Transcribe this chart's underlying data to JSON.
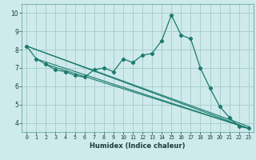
{
  "title": "",
  "xlabel": "Humidex (Indice chaleur)",
  "ylabel": "",
  "background_color": "#ceeaea",
  "grid_color": "#aacfcf",
  "line_color": "#1a7a6e",
  "xlim": [
    -0.5,
    23.5
  ],
  "ylim": [
    3.5,
    10.5
  ],
  "xticks": [
    0,
    1,
    2,
    3,
    4,
    5,
    6,
    7,
    8,
    9,
    10,
    11,
    12,
    13,
    14,
    15,
    16,
    17,
    18,
    19,
    20,
    21,
    22,
    23
  ],
  "yticks": [
    4,
    5,
    6,
    7,
    8,
    9,
    10
  ],
  "main_curve": {
    "x": [
      0,
      1,
      2,
      3,
      4,
      5,
      6,
      7,
      8,
      9,
      10,
      11,
      12,
      13,
      14,
      15,
      16,
      17,
      18,
      19,
      20,
      21,
      22,
      23
    ],
    "y": [
      8.2,
      7.5,
      7.2,
      6.9,
      6.8,
      6.6,
      6.5,
      6.9,
      7.0,
      6.8,
      7.5,
      7.3,
      7.7,
      7.8,
      8.5,
      9.9,
      8.8,
      8.6,
      7.0,
      5.9,
      4.9,
      4.3,
      3.8,
      3.7
    ]
  },
  "straight_lines": [
    {
      "x": [
        0,
        23
      ],
      "y": [
        8.2,
        3.7
      ]
    },
    {
      "x": [
        0,
        23
      ],
      "y": [
        8.2,
        3.8
      ]
    },
    {
      "x": [
        1,
        23
      ],
      "y": [
        7.5,
        3.7
      ]
    },
    {
      "x": [
        2,
        23
      ],
      "y": [
        7.2,
        3.7
      ]
    }
  ]
}
